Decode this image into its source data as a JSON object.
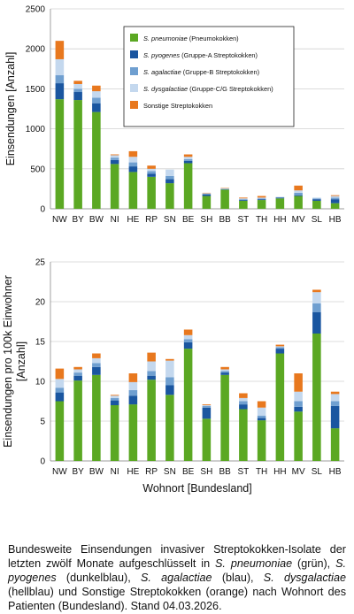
{
  "colors": {
    "pneumoniae": "#5ba823",
    "pyogenes": "#1a56a0",
    "agalactiae": "#6f9fd0",
    "dysgalactiae": "#c4d8ee",
    "sonstige": "#e8781e"
  },
  "chart_data": [
    {
      "type": "bar",
      "stacked": true,
      "title": "",
      "xlabel": "",
      "ylabel": "Einsendungen [Anzahl]",
      "ylim": [
        0,
        2500
      ],
      "yticks": [
        "0",
        "500",
        "1000",
        "1500",
        "2000",
        "2500"
      ],
      "grid": true,
      "legend_position": "top-right",
      "categories": [
        "NW",
        "BY",
        "BW",
        "NI",
        "HE",
        "RP",
        "SN",
        "BE",
        "SH",
        "BB",
        "ST",
        "TH",
        "HH",
        "MV",
        "SL",
        "HB"
      ],
      "series": [
        {
          "key": "pneumoniae",
          "name_italic": "S. pneumoniae",
          "name_rest": " (Pneumokokken)",
          "values": [
            1370,
            1360,
            1210,
            560,
            460,
            400,
            320,
            570,
            160,
            240,
            100,
            110,
            130,
            160,
            100,
            70
          ]
        },
        {
          "key": "pyogenes",
          "name_italic": "S. pyogenes",
          "name_rest": " (Gruppe-A Streptokokken)",
          "values": [
            200,
            100,
            110,
            50,
            70,
            40,
            50,
            30,
            20,
            5,
            10,
            10,
            10,
            10,
            20,
            50
          ]
        },
        {
          "key": "agalactiae",
          "name_italic": "S. agalactiae",
          "name_rest": " (Gruppe-B Streptokokken)",
          "values": [
            100,
            40,
            70,
            30,
            50,
            30,
            40,
            20,
            10,
            5,
            10,
            10,
            5,
            30,
            10,
            20
          ]
        },
        {
          "key": "dysgalactiae",
          "name_italic": "S. dysgalactiae",
          "name_rest": " (Gruppe-C/G Streptokokken)",
          "values": [
            200,
            60,
            80,
            30,
            70,
            30,
            80,
            30,
            5,
            5,
            10,
            10,
            5,
            30,
            10,
            20
          ]
        },
        {
          "key": "sonstige",
          "name_italic": "",
          "name_rest": "Sonstige Streptokokken",
          "values": [
            230,
            40,
            70,
            10,
            70,
            40,
            0,
            30,
            5,
            5,
            10,
            20,
            0,
            60,
            0,
            10
          ]
        }
      ]
    },
    {
      "type": "bar",
      "stacked": true,
      "title": "",
      "xlabel": "Wohnort [Bundesland]",
      "ylabel": "Einsendungen pro 100k Einwohner [Anzahl]",
      "ylabel_lines": [
        "Einsendungen pro 100k Einwohner",
        "[Anzahl]"
      ],
      "ylim": [
        0,
        25
      ],
      "yticks": [
        "0",
        "5",
        "10",
        "15",
        "20",
        "25"
      ],
      "grid": true,
      "categories": [
        "NW",
        "BY",
        "BW",
        "NI",
        "HE",
        "RP",
        "SN",
        "BE",
        "SH",
        "BB",
        "ST",
        "TH",
        "HH",
        "MV",
        "SL",
        "HB"
      ],
      "series": [
        {
          "key": "pneumoniae",
          "values": [
            7.5,
            10.1,
            10.8,
            7.0,
            7.1,
            10.2,
            8.3,
            14.1,
            5.3,
            10.8,
            6.5,
            5.1,
            13.5,
            6.2,
            16.0,
            4.1
          ]
        },
        {
          "key": "pyogenes",
          "values": [
            1.1,
            0.6,
            1.0,
            0.6,
            1.1,
            0.5,
            1.2,
            0.8,
            1.4,
            0.3,
            0.6,
            0.3,
            0.6,
            0.6,
            2.7,
            2.8
          ]
        },
        {
          "key": "agalactiae",
          "values": [
            0.6,
            0.4,
            0.5,
            0.3,
            0.7,
            0.6,
            1.0,
            0.4,
            0.2,
            0.2,
            0.4,
            0.3,
            0.2,
            0.7,
            1.1,
            0.6
          ]
        },
        {
          "key": "dysgalactiae",
          "values": [
            1.1,
            0.4,
            0.6,
            0.3,
            1.0,
            1.2,
            2.1,
            0.5,
            0.1,
            0.2,
            0.4,
            1.0,
            0.1,
            1.2,
            1.4,
            0.9
          ]
        },
        {
          "key": "sonstige",
          "values": [
            1.3,
            0.3,
            0.6,
            0.1,
            1.1,
            1.1,
            0.2,
            0.7,
            0.1,
            0.3,
            0.6,
            0.8,
            0.2,
            2.3,
            0.3,
            0.3
          ]
        }
      ]
    }
  ],
  "caption": {
    "t1": "Bundesweite Einsendungen invasiver Streptokokken-Isolate der letzten zwölf Monate aufgeschlüsselt in ",
    "s1": "S. pneumoniae",
    "t2": " (grün), ",
    "s2": "S. pyogenes",
    "t3": " (dunkelblau), ",
    "s3": "S. agalactiae",
    "t4": " (blau), ",
    "s4": "S. dysgalactiae",
    "t5": " (hellblau) und Sonstige Streptokokken (orange) nach Wohnort des Patienten (Bundesland). Stand 04.03.2026."
  }
}
